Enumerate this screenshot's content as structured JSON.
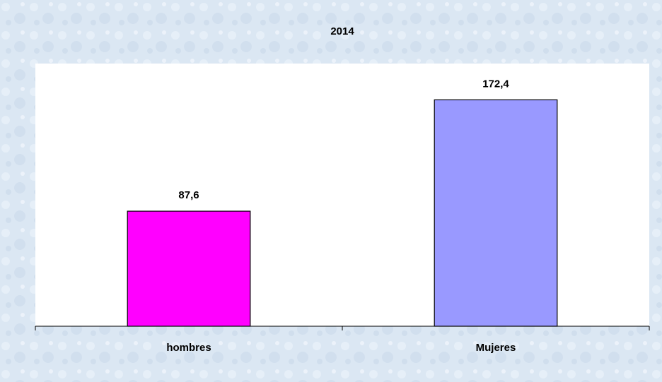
{
  "chart_data": {
    "type": "bar",
    "title": "2014",
    "categories": [
      "hombres",
      "Mujeres"
    ],
    "values": [
      87.6,
      172.4
    ],
    "value_labels": [
      "87,6",
      "172,4"
    ],
    "colors": [
      "#ff00ff",
      "#9999ff"
    ],
    "ylim": [
      0,
      200
    ]
  }
}
